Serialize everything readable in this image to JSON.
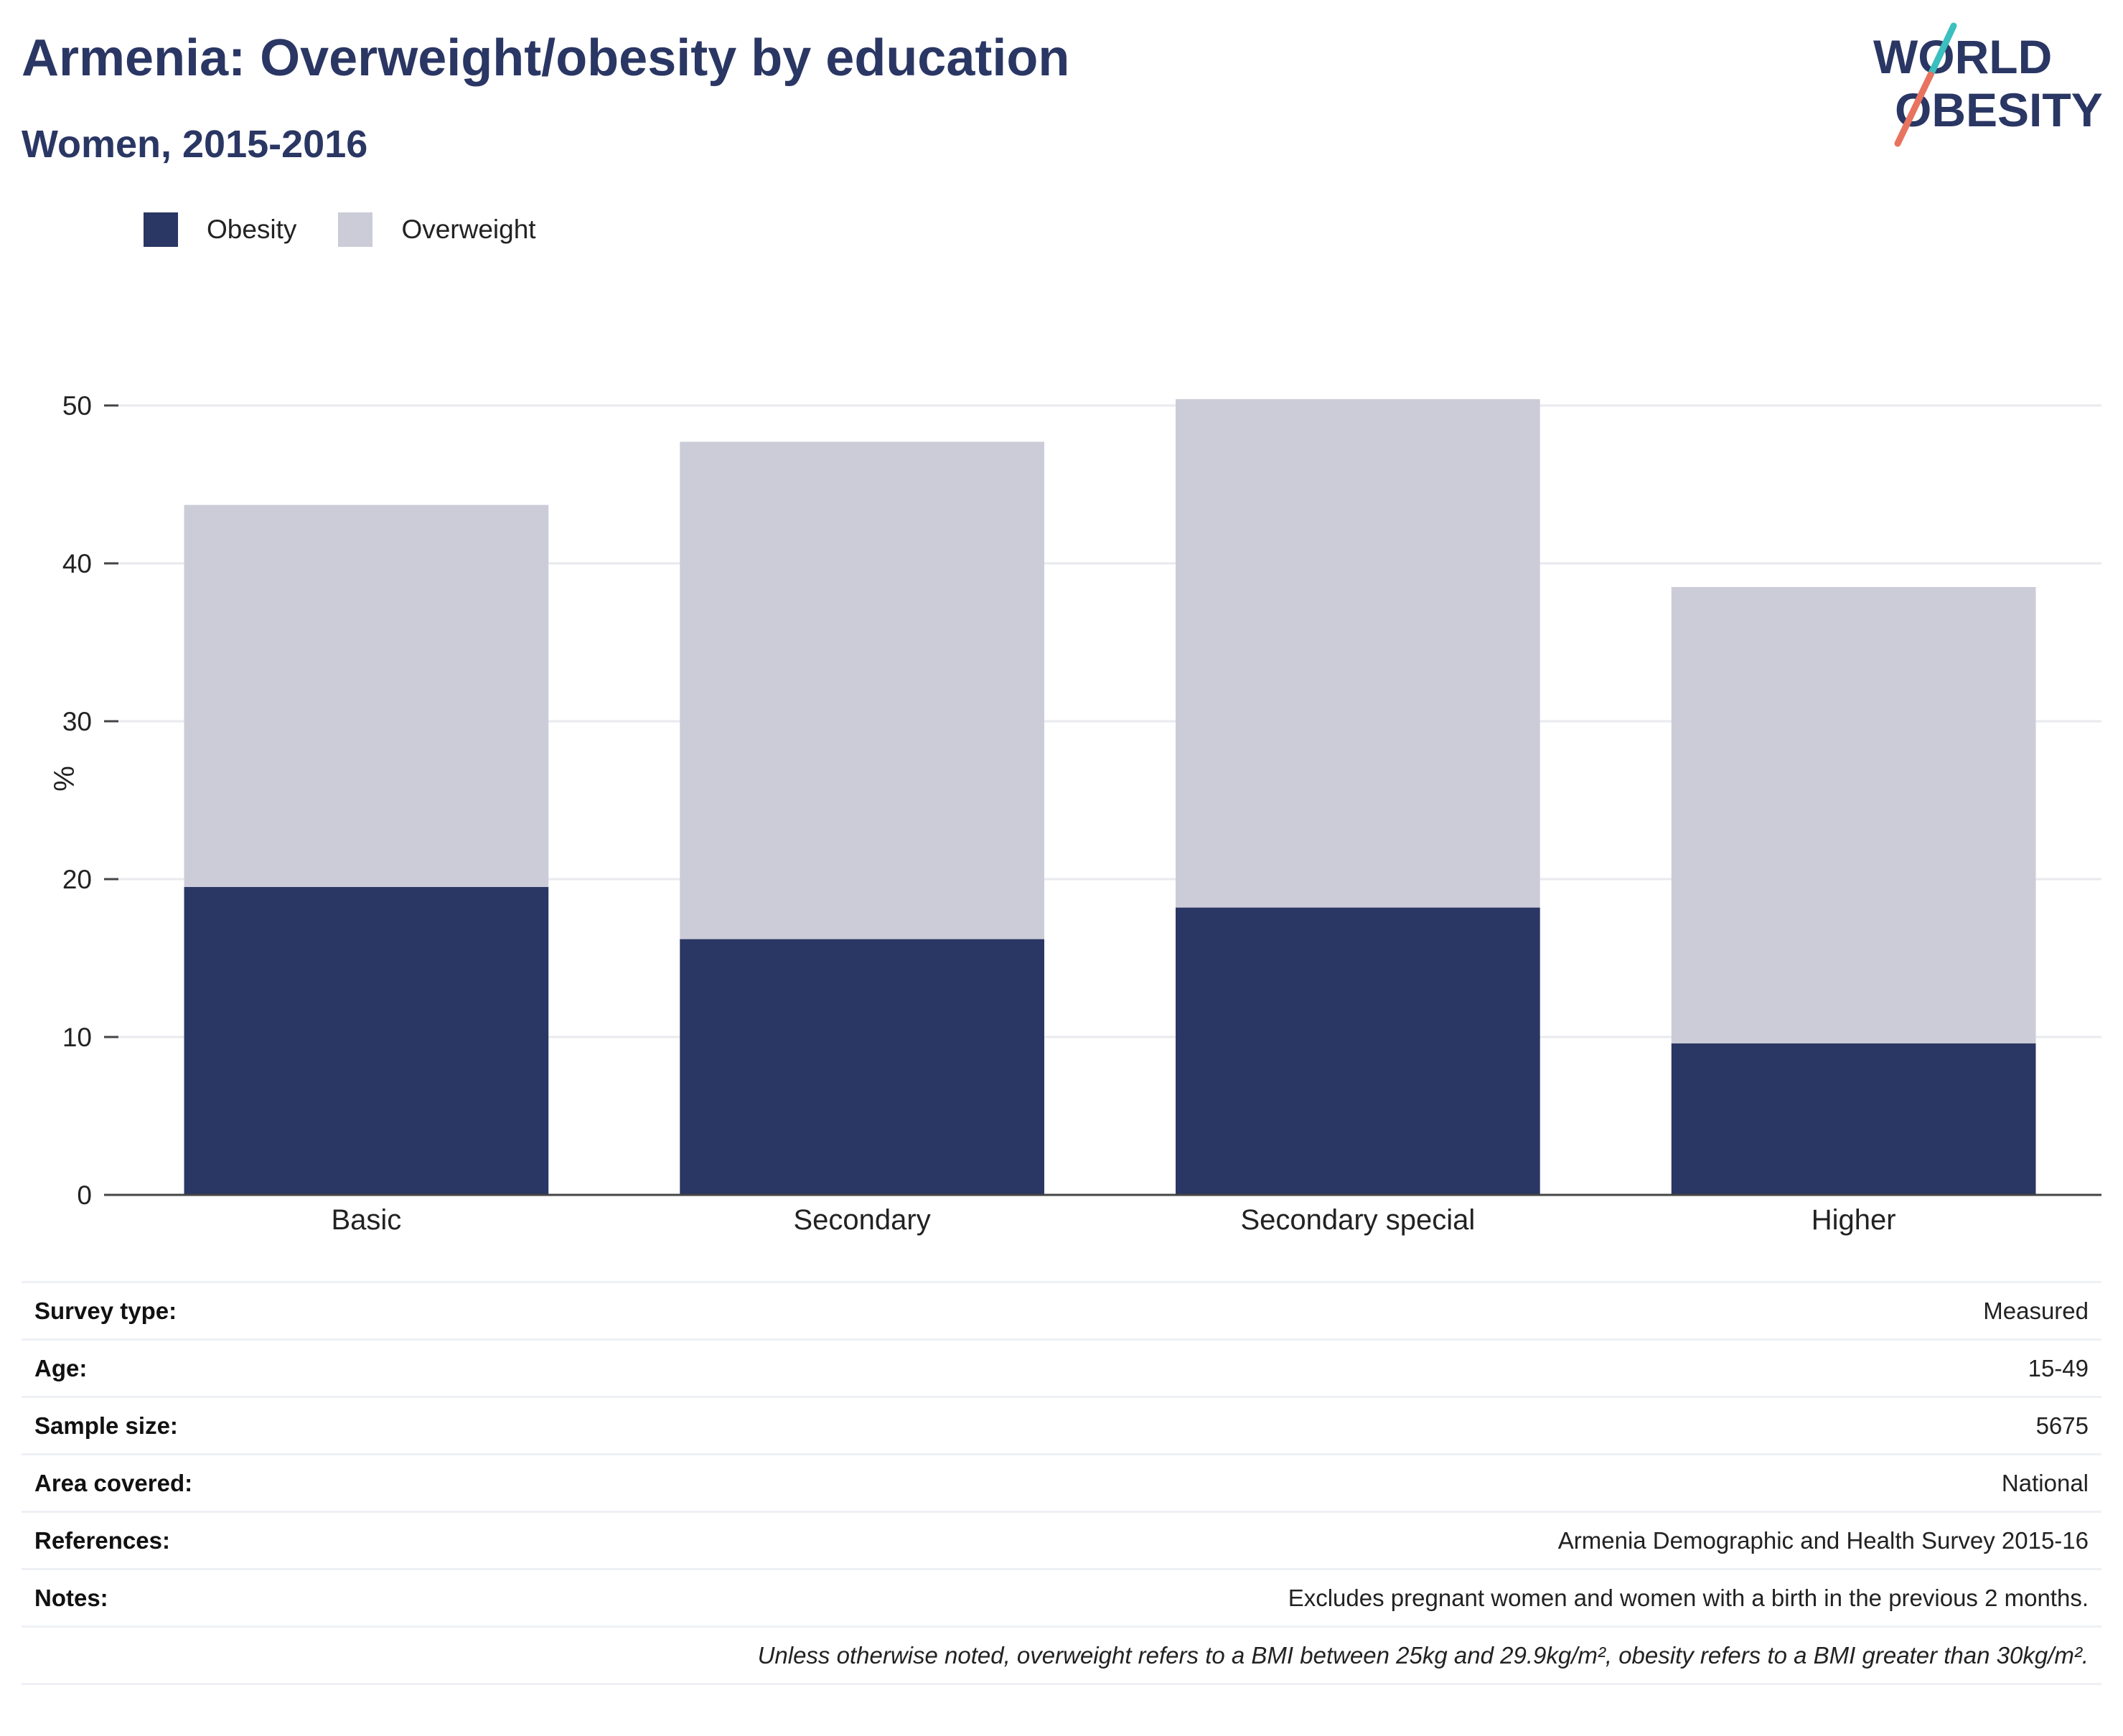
{
  "header": {
    "title": "Armenia: Overweight/obesity by education",
    "subtitle": "Women, 2015-2016"
  },
  "logo": {
    "line1": "WORLD",
    "line2": "OBESITY",
    "accent_teal": "#3bbfbf",
    "accent_coral": "#e8735f"
  },
  "legend": [
    {
      "label": "Obesity",
      "color": "#2a3663"
    },
    {
      "label": "Overweight",
      "color": "#cbccd8"
    }
  ],
  "chart_data": {
    "type": "bar",
    "stacked": true,
    "categories": [
      "Basic",
      "Secondary",
      "Secondary special",
      "Higher"
    ],
    "series": [
      {
        "name": "Obesity",
        "color": "#2a3663",
        "values": [
          19.5,
          16.2,
          18.2,
          9.6
        ]
      },
      {
        "name": "Overweight",
        "color": "#cbccd8",
        "values": [
          24.2,
          31.5,
          32.2,
          28.9
        ]
      }
    ],
    "ylabel": "%",
    "xlabel": "",
    "ylim": [
      0,
      50
    ],
    "yticks": [
      0,
      10,
      20,
      30,
      40,
      50
    ],
    "grid": true,
    "legend_position": "top-left"
  },
  "info": {
    "rows": [
      {
        "label": "Survey type:",
        "value": "Measured"
      },
      {
        "label": "Age:",
        "value": "15-49"
      },
      {
        "label": "Sample size:",
        "value": "5675"
      },
      {
        "label": "Area covered:",
        "value": "National"
      },
      {
        "label": "References:",
        "value": "Armenia Demographic and Health Survey 2015-16"
      },
      {
        "label": "Notes:",
        "value": "Excludes pregnant women and women with a birth in the previous 2 months."
      }
    ],
    "footnote": "Unless otherwise noted, overweight refers to a BMI between 25kg and 29.9kg/m², obesity refers to a BMI greater than 30kg/m²."
  }
}
